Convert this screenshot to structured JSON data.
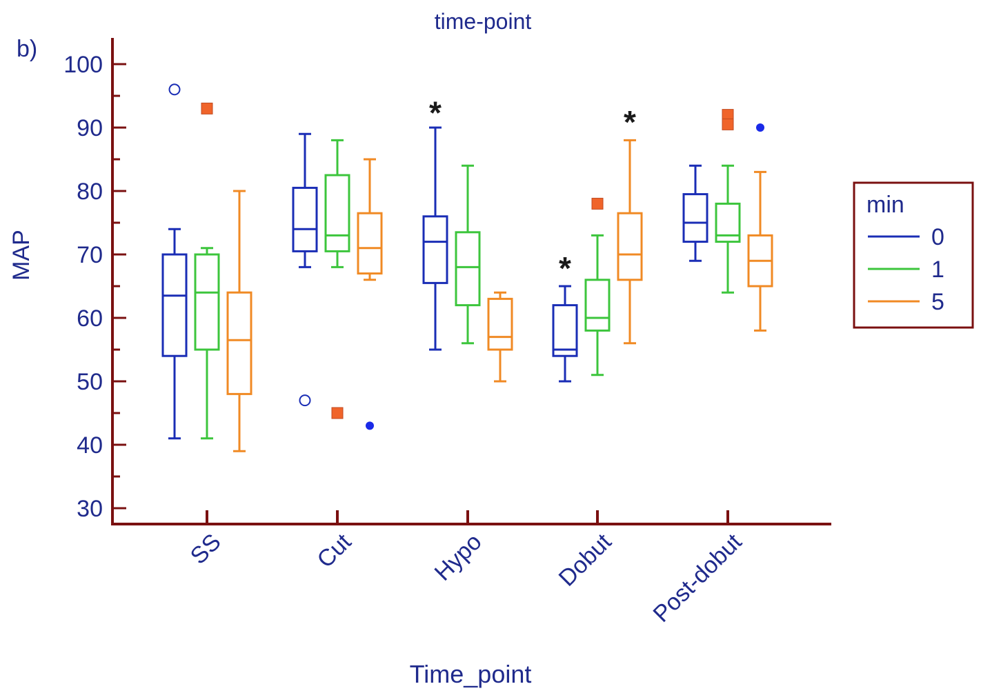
{
  "panel_label": "b)",
  "chart_data": {
    "type": "box",
    "title": "time-point",
    "xlabel": "Time_point",
    "ylabel": "MAP",
    "ylim": [
      30,
      100
    ],
    "yticks": [
      30,
      40,
      50,
      60,
      70,
      80,
      90,
      100
    ],
    "categories": [
      "SS",
      "Cut",
      "Hypo",
      "Dobut",
      "Post-dobut"
    ],
    "legend": {
      "title": "min",
      "position": "right",
      "entries": [
        {
          "label": "0",
          "color": "#1a2db5"
        },
        {
          "label": "1",
          "color": "#3cc53c"
        },
        {
          "label": "5",
          "color": "#f08a24"
        }
      ]
    },
    "colors": {
      "axis": "#7a1010",
      "text": "#1f2a8c",
      "star": "#1a1a1a"
    },
    "series": [
      {
        "name": "0",
        "color": "#1a2db5",
        "boxes": [
          {
            "min": 41,
            "q1": 54,
            "median": 63.5,
            "q3": 70,
            "max": 74
          },
          {
            "min": 68,
            "q1": 70.5,
            "median": 74,
            "q3": 80.5,
            "max": 89
          },
          {
            "min": 55,
            "q1": 65.5,
            "median": 72,
            "q3": 76,
            "max": 90
          },
          {
            "min": 50,
            "q1": 54,
            "median": 55,
            "q3": 62,
            "max": 65
          },
          {
            "min": 69,
            "q1": 72,
            "median": 75,
            "q3": 79.5,
            "max": 84
          }
        ],
        "outliers": [
          {
            "category": "SS",
            "value": 96,
            "marker": "circle"
          },
          {
            "category": "Cut",
            "value": 47,
            "marker": "circle"
          }
        ]
      },
      {
        "name": "1",
        "color": "#3cc53c",
        "boxes": [
          {
            "min": 41,
            "q1": 55,
            "median": 64,
            "q3": 70,
            "max": 71
          },
          {
            "min": 68,
            "q1": 70.5,
            "median": 73,
            "q3": 82.5,
            "max": 88
          },
          {
            "min": 56,
            "q1": 62,
            "median": 68,
            "q3": 73.5,
            "max": 84
          },
          {
            "min": 51,
            "q1": 58,
            "median": 60,
            "q3": 66,
            "max": 73
          },
          {
            "min": 64,
            "q1": 72,
            "median": 73,
            "q3": 78,
            "max": 84
          }
        ],
        "outliers": [
          {
            "category": "SS",
            "value": 93,
            "marker": "square"
          },
          {
            "category": "Cut",
            "value": 45,
            "marker": "square"
          },
          {
            "category": "Dobut",
            "value": 78,
            "marker": "square"
          },
          {
            "category": "Post-dobut",
            "value": 92,
            "marker": "square"
          },
          {
            "category": "Post-dobut",
            "value": 90.5,
            "marker": "square"
          }
        ]
      },
      {
        "name": "5",
        "color": "#f08a24",
        "boxes": [
          {
            "min": 39,
            "q1": 48,
            "median": 56.5,
            "q3": 64,
            "max": 80
          },
          {
            "min": 66,
            "q1": 67,
            "median": 71,
            "q3": 76.5,
            "max": 85
          },
          {
            "min": 50,
            "q1": 55,
            "median": 57,
            "q3": 63,
            "max": 64
          },
          {
            "min": 56,
            "q1": 66,
            "median": 70,
            "q3": 76.5,
            "max": 88
          },
          {
            "min": 58,
            "q1": 65,
            "median": 69,
            "q3": 73,
            "max": 83
          }
        ],
        "outliers": [
          {
            "category": "Cut",
            "value": 43,
            "marker": "dot"
          },
          {
            "category": "Post-dobut",
            "value": 90,
            "marker": "dot"
          }
        ]
      }
    ],
    "annotations": [
      {
        "text": "*",
        "category": "Hypo",
        "series": "0",
        "value": 93
      },
      {
        "text": "*",
        "category": "Dobut",
        "series": "0",
        "value": 68.5
      },
      {
        "text": "*",
        "category": "Dobut",
        "series": "5",
        "value": 91.5
      }
    ]
  }
}
